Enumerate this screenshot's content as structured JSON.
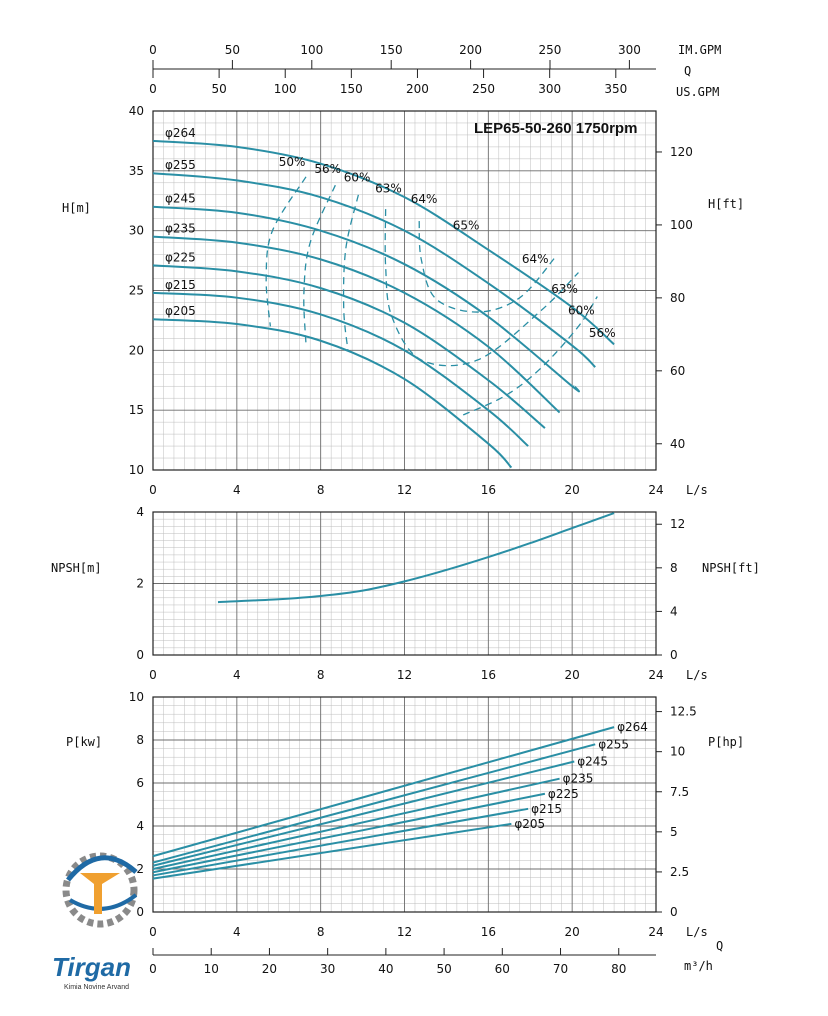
{
  "chart_data": [
    {
      "type": "line",
      "title": "LEP65-50-260 1750rpm",
      "ylabel": "H[m]",
      "ylabel_right": "H[ft]",
      "xlabel": "L/s",
      "xlim": [
        0,
        24
      ],
      "ylim": [
        10,
        40
      ],
      "x_ticks": [
        "0",
        "4",
        "8",
        "12",
        "16",
        "20",
        "24"
      ],
      "y_ticks": [
        "10",
        "15",
        "20",
        "25",
        "30",
        "35",
        "40"
      ],
      "y_right_ticks": [
        "40",
        "60",
        "80",
        "100",
        "120"
      ],
      "grid": true,
      "top_axes": [
        {
          "label": "IM.GPM",
          "ticks": [
            "0",
            "50",
            "100",
            "150",
            "200",
            "250",
            "300"
          ]
        },
        {
          "label": "Q",
          "ticks": []
        },
        {
          "label": "US.GPM",
          "ticks": [
            "0",
            "50",
            "100",
            "150",
            "200",
            "250",
            "300",
            "350"
          ]
        }
      ],
      "series": [
        {
          "name": "φ264",
          "x": [
            0,
            4,
            8,
            12,
            16,
            20,
            22
          ],
          "y": [
            37.5,
            37.0,
            35.6,
            32.8,
            28.4,
            23.6,
            20.5
          ]
        },
        {
          "name": "φ255",
          "x": [
            0,
            4,
            8,
            12,
            16,
            20,
            21.1
          ],
          "y": [
            34.8,
            34.2,
            32.8,
            30.0,
            25.6,
            20.4,
            18.6
          ]
        },
        {
          "name": "φ245",
          "x": [
            0,
            4,
            8,
            12,
            16,
            20,
            20.1
          ],
          "y": [
            32.0,
            31.5,
            30.0,
            27.2,
            22.8,
            17.0,
            17.0
          ]
        },
        {
          "name": "φ235",
          "x": [
            0,
            4,
            8,
            12,
            16,
            19.4
          ],
          "y": [
            29.5,
            29.0,
            27.6,
            24.8,
            20.3,
            14.8
          ]
        },
        {
          "name": "φ225",
          "x": [
            0,
            4,
            8,
            12,
            16,
            18.7
          ],
          "y": [
            27.1,
            26.6,
            25.2,
            22.3,
            17.5,
            13.5
          ]
        },
        {
          "name": "φ215",
          "x": [
            0,
            4,
            8,
            12,
            16,
            17.9
          ],
          "y": [
            24.8,
            24.4,
            23.0,
            20.0,
            15.0,
            12.0
          ]
        },
        {
          "name": "φ205",
          "x": [
            0,
            4,
            8,
            12,
            16,
            17.1
          ],
          "y": [
            22.6,
            22.2,
            20.8,
            17.6,
            12.2,
            10.2
          ]
        }
      ],
      "efficiency_curves": [
        {
          "label": "50%",
          "x": [
            7.3,
            5.7,
            5.4,
            5.6
          ],
          "y": [
            34.5,
            30.0,
            26.0,
            22.0
          ]
        },
        {
          "label": "56%",
          "x": [
            8.7,
            7.5,
            7.2,
            7.3
          ],
          "y": [
            33.8,
            29.0,
            24.8,
            20.5
          ]
        },
        {
          "label": "60%",
          "x": [
            9.8,
            9.2,
            9.1,
            9.3
          ],
          "y": [
            33.0,
            28.5,
            23.5,
            20.0
          ]
        },
        {
          "label": "63%",
          "x": [
            11.1,
            11.1,
            11.4,
            12.8,
            15.5,
            18.5,
            20.3
          ],
          "y": [
            31.8,
            27.0,
            22.8,
            19.2,
            19.2,
            23.3,
            26.5
          ]
        },
        {
          "label": "64%",
          "x": [
            12.7,
            12.8,
            13.5,
            15.5,
            17.5,
            19.2
          ],
          "y": [
            30.8,
            27.6,
            24.3,
            23.2,
            24.4,
            27.8
          ]
        },
        {
          "label": "56%",
          "x": [
            14.8,
            16.8,
            18.5,
            20.3,
            21.2
          ],
          "y": [
            14.6,
            16.2,
            18.5,
            22.0,
            24.5
          ]
        }
      ],
      "efficiency_labels": [
        {
          "text": "50%",
          "x": 6.0,
          "y": 35.4
        },
        {
          "text": "56%",
          "x": 7.7,
          "y": 34.8
        },
        {
          "text": "60%",
          "x": 9.1,
          "y": 34.1
        },
        {
          "text": "63%",
          "x": 10.6,
          "y": 33.2
        },
        {
          "text": "64%",
          "x": 12.3,
          "y": 32.3
        },
        {
          "text": "65%",
          "x": 14.3,
          "y": 30.1
        },
        {
          "text": "64%",
          "x": 17.6,
          "y": 27.3
        },
        {
          "text": "63%",
          "x": 19.0,
          "y": 24.8
        },
        {
          "text": "60%",
          "x": 19.8,
          "y": 23.0
        },
        {
          "text": "56%",
          "x": 20.8,
          "y": 21.1
        }
      ]
    },
    {
      "type": "line",
      "ylabel": "NPSH[m]",
      "ylabel_right": "NPSH[ft]",
      "xlabel": "L/s",
      "xlim": [
        0,
        24
      ],
      "ylim": [
        0,
        4
      ],
      "x_ticks": [
        "0",
        "4",
        "8",
        "12",
        "16",
        "20",
        "24"
      ],
      "y_ticks": [
        "0",
        "2",
        "4"
      ],
      "y_right_ticks": [
        "0",
        "4",
        "8",
        "12"
      ],
      "grid": true,
      "series": [
        {
          "name": "",
          "x": [
            3.1,
            6,
            8,
            10,
            12,
            14,
            16,
            18,
            20,
            22
          ],
          "y": [
            1.48,
            1.56,
            1.65,
            1.8,
            2.06,
            2.38,
            2.74,
            3.13,
            3.55,
            3.97
          ]
        }
      ]
    },
    {
      "type": "line",
      "ylabel": "P[kw]",
      "ylabel_right": "P[hp]",
      "xlabel": "L/s",
      "xlim": [
        0,
        24
      ],
      "ylim": [
        0,
        10
      ],
      "x_ticks": [
        "0",
        "4",
        "8",
        "12",
        "16",
        "20",
        "24"
      ],
      "y_ticks": [
        "0",
        "2",
        "4",
        "6",
        "8",
        "10"
      ],
      "y_right_ticks": [
        "0",
        "2.5",
        "5",
        "7.5",
        "10",
        "12.5"
      ],
      "grid": true,
      "bottom_axis": {
        "label": "m³/h",
        "title": "Q",
        "ticks": [
          "0",
          "10",
          "20",
          "30",
          "40",
          "50",
          "60",
          "70",
          "80"
        ]
      },
      "series": [
        {
          "name": "φ264",
          "x": [
            0,
            22
          ],
          "y": [
            2.6,
            8.6
          ]
        },
        {
          "name": "φ255",
          "x": [
            0,
            21.1
          ],
          "y": [
            2.3,
            7.8
          ]
        },
        {
          "name": "φ245",
          "x": [
            0,
            20.1
          ],
          "y": [
            2.15,
            7.0
          ]
        },
        {
          "name": "φ235",
          "x": [
            0,
            19.4
          ],
          "y": [
            2.0,
            6.2
          ]
        },
        {
          "name": "φ225",
          "x": [
            0,
            18.7
          ],
          "y": [
            1.85,
            5.5
          ]
        },
        {
          "name": "φ215",
          "x": [
            0,
            17.9
          ],
          "y": [
            1.7,
            4.8
          ]
        },
        {
          "name": "φ205",
          "x": [
            0,
            17.1
          ],
          "y": [
            1.55,
            4.1
          ]
        }
      ]
    }
  ],
  "logo": {
    "name": "Tirgan",
    "subtitle": "Kimia Novine Arvand"
  },
  "colors": {
    "curve": "#2a8fa5",
    "grid_major": "#6e6e6e",
    "grid_minor": "#bdbdbd",
    "logo_blue": "#1f6aa5",
    "logo_orange": "#f0a030"
  }
}
